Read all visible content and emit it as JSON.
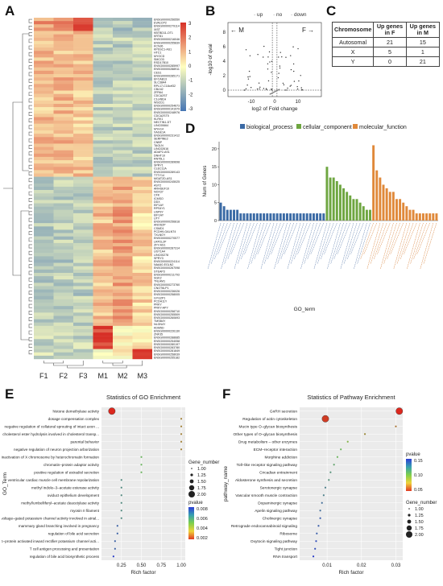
{
  "panels": {
    "A": "A",
    "B": "B",
    "C": "C",
    "D": "D",
    "E": "E",
    "F": "F"
  },
  "heatmap": {
    "samples": [
      "F1",
      "F2",
      "F3",
      "M1",
      "M2",
      "M3"
    ],
    "colorbar_ticks": [
      "3",
      "2",
      "1",
      "0",
      "-1",
      "-2",
      "-3"
    ],
    "colors": {
      "high": "#d73027",
      "mid": "#ffffbf",
      "low": "#4575b4"
    },
    "genes": [
      "ENSG00000256550",
      "EVA1CP2",
      "ENSG00000279114",
      "XIST",
      "KBTBD11-OT1",
      "KRT81",
      "ENSG00000216046",
      "ENSG00000255839",
      "KCNJ6",
      "KPSSC1-AS1",
      "HTC1",
      "MYOCD",
      "SMCO3",
      "RSD17B10",
      "ENSG00000285997",
      "ENSG00000288911",
      "CES1",
      "ENSG00000285171",
      "EFCAB13",
      "SLC38A4",
      "RPL17-C18orf32",
      "CBLN2",
      "ZFR64",
      "CDCA2ST",
      "C1orf81A",
      "WSCD1",
      "ENSG00000254673",
      "ENSG00000141979",
      "ENSG00000248976",
      "CDCA2ST5",
      "KLRK1",
      "NECTIN1-DT",
      "LINC00664",
      "MYH14",
      "XAGE1A",
      "ENSG00000231412",
      "SERPINE2",
      "CNBP",
      "TAGLN",
      "LINC02616",
      "ADAP2-AS1",
      "DNHT10",
      "RNT5L1",
      "ENSG00000289698",
      "SPRY1",
      "CLEC11A",
      "ENSG00000289143",
      "TTTY14",
      "MGAT2D-AS1",
      "ENSG00000245025",
      "ASY2",
      "ARHGEF10",
      "NOX37",
      "CFK",
      "ICMSO",
      "DDX",
      "EIF1AY",
      "RPS4Y1",
      "USP9Y",
      "EIF1AY",
      "UTY",
      "ENSG00000256818",
      "ANOS2P",
      "CSMD1",
      "PCDH9-GALNT4",
      "TXLNGY",
      "ENSG00000270577",
      "LRP2L2P",
      "ZFY-AS1",
      "ENSG00000287314",
      "UGT1A4",
      "LINC00278",
      "SPRY3",
      "ENSG00000224114",
      "NAA40-EGLN2",
      "ENSG00000267098",
      "STEAP3",
      "ENSG00000211793",
      "SGK2",
      "TNLAM1",
      "ENSG00000273760",
      "CNOT6LP1",
      "ENSG00000236026",
      "ENSG00000258005",
      "GYG2P1",
      "PCDH11Y",
      "PRKY",
      "PRKY-APY",
      "ENSG00000258710",
      "ENSG00000255509",
      "ENSG00000260693",
      "TMSB4Y",
      "NLGN4Y",
      "KDM5D",
      "ENSG00000226130",
      "ZNF35",
      "ENSG00000288685",
      "ENSG00000254058",
      "ENSG00000280197",
      "ENSG00000283780",
      "ENSG00000281849",
      "ENSG00000258039",
      "ENSG00000255182"
    ]
  },
  "volcano": {
    "legend": [
      "up",
      "no",
      "down"
    ],
    "arrow_left": "← M",
    "arrow_right": "F →",
    "ylabel": "-log10 of qval",
    "xlabel": "log2 of Fold change",
    "xticks": [
      "-10",
      "0",
      "10"
    ],
    "yticks": [
      "0",
      "2",
      "4",
      "6",
      "8"
    ]
  },
  "chrom_table": {
    "headers": [
      "Chromosome",
      "Up genes in F",
      "Up genes in M"
    ],
    "rows": [
      [
        "Autosomal",
        "21",
        "15"
      ],
      [
        "X",
        "5",
        "1"
      ],
      [
        "Y",
        "0",
        "21"
      ]
    ]
  },
  "chart_data": [
    {
      "type": "bar",
      "id": "D",
      "legend": [
        "biological_process",
        "cellular_component",
        "molecular_function"
      ],
      "colors": {
        "biological_process": "#3a6aa5",
        "cellular_component": "#6ea640",
        "molecular_function": "#e0893a"
      },
      "ylabel": "Num of Genes",
      "xlabel": "GO_term",
      "ylim": [
        0,
        22
      ],
      "yticks": [
        0,
        5,
        10,
        15,
        20
      ],
      "bp_values": [
        5,
        4,
        3,
        3,
        3,
        3,
        2,
        2,
        2,
        2,
        2,
        2,
        2,
        2,
        2,
        2,
        2,
        2,
        2,
        2,
        2,
        2,
        2,
        2,
        2,
        2,
        2,
        2,
        2,
        2,
        2,
        2
      ],
      "cc_values": [
        15,
        12,
        12,
        11,
        10,
        9,
        8,
        7,
        6,
        6,
        5,
        4,
        3,
        3
      ],
      "mf_values": [
        21,
        14,
        12,
        10,
        9,
        8,
        8,
        6,
        6,
        5,
        4,
        3,
        3,
        2,
        2,
        2,
        2,
        2,
        2,
        2
      ]
    },
    {
      "type": "scatter",
      "id": "E",
      "title": "Statistics of GO Enrichment",
      "xlabel": "Rich factor",
      "ylabel": "GO_Term",
      "xticks": [
        "0.25",
        "0.50",
        "0.75",
        "1.00"
      ],
      "xlim": [
        0.0,
        1.05
      ],
      "terms": [
        "histone demethylase activity",
        "dosage compensation complex",
        "negative regulation of collateral sprouting of intact axon ...",
        "cholesterol ester hydrolysis involved in cholesterol transp...",
        "parental behavior",
        "negative regulation of neuron projection arborization",
        "inactivation of X chromosome by heterochromatin formation",
        "chromatin–protein adaptor activity",
        "positive regulation of estradiol secretion",
        "ventricular cardiac muscle cell membrane repolarization",
        "methyl indole–3–acetate esterase activity",
        "oviduct epithelium development",
        "methyl/umbelliferyl–acetate deacetylase activity",
        "myosin II filament",
        "voltage–gated potassium channel activity involved in atrial...",
        "mammary gland branching involved in pregnancy",
        "regulation of bile acid secretion",
        "G–protein activated inward rectifier potassium channel acti...",
        "T cell antigen processing and presentation",
        "regulation of bile acid biosynthetic process"
      ],
      "rich_factor": [
        0.13,
        1.0,
        1.0,
        1.0,
        1.0,
        1.0,
        0.5,
        0.5,
        0.5,
        0.25,
        0.25,
        0.25,
        0.25,
        0.25,
        0.25,
        0.2,
        0.2,
        0.17,
        0.17,
        0.15
      ],
      "gene_number": [
        2,
        1,
        1,
        1,
        1,
        1,
        1,
        1,
        1,
        1,
        1,
        1,
        1,
        1,
        1,
        1,
        1,
        1,
        1,
        1
      ],
      "pvalue": [
        0.001,
        0.003,
        0.003,
        0.003,
        0.003,
        0.003,
        0.005,
        0.005,
        0.005,
        0.006,
        0.006,
        0.006,
        0.006,
        0.006,
        0.006,
        0.007,
        0.007,
        0.007,
        0.007,
        0.008
      ],
      "legend_gene_title": "Gene_number",
      "legend_gene": [
        "1.00",
        "1.25",
        "1.50",
        "1.75",
        "2.00"
      ],
      "legend_p_title": "pvalue",
      "legend_p": [
        "0.008",
        "0.006",
        "0.004",
        "0.002"
      ]
    },
    {
      "type": "scatter",
      "id": "F",
      "title": "Statistics of Pathway Enrichment",
      "xlabel": "Rich factor",
      "ylabel": "pathway_name",
      "xticks": [
        "0.01",
        "0.02",
        "0.03"
      ],
      "xlim": [
        0.002,
        0.032
      ],
      "pathways": [
        "GnRH secretion",
        "Regulation of actin cytoskeleton",
        "Mucin type O–glycan biosynthesis",
        "Other types of O–glycan biosynthesis",
        "Drug metabolism – other enzymes",
        "ECM–receptor interaction",
        "Morphine addiction",
        "Toll–like receptor signaling pathway",
        "Circadian entrainment",
        "Aldosterone synthesis and secretion",
        "Serotonergic synapse",
        "Vascular smooth muscle contraction",
        "Dopaminergic synapse",
        "Apelin signaling pathway",
        "Cholinergic synapse",
        "Retrograde endocannabinoid signaling",
        "Ribosome",
        "Oxytocin signaling pathway",
        "Tight junction",
        "RNA transport"
      ],
      "rich_factor": [
        0.031,
        0.0095,
        0.03,
        0.021,
        0.016,
        0.014,
        0.013,
        0.012,
        0.011,
        0.0105,
        0.0095,
        0.009,
        0.0085,
        0.008,
        0.008,
        0.0075,
        0.007,
        0.0068,
        0.0065,
        0.006
      ],
      "gene_number": [
        2,
        2,
        1,
        1,
        1,
        1,
        1,
        1,
        1,
        1,
        1,
        1,
        1,
        1,
        1,
        1,
        1,
        1,
        1,
        1
      ],
      "pvalue": [
        0.01,
        0.02,
        0.05,
        0.06,
        0.08,
        0.1,
        0.1,
        0.11,
        0.12,
        0.12,
        0.13,
        0.13,
        0.14,
        0.14,
        0.15,
        0.15,
        0.15,
        0.16,
        0.16,
        0.17
      ],
      "legend_p_title": "pvalue",
      "legend_p": [
        "0.15",
        "0.10",
        "0.05"
      ],
      "legend_gene_title": "Gene_number",
      "legend_gene": [
        "1.00",
        "1.25",
        "1.50",
        "1.75",
        "2.00"
      ]
    }
  ]
}
